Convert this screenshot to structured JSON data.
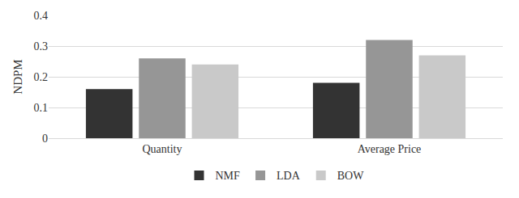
{
  "chart_data": {
    "type": "bar",
    "y_label": "NDPM",
    "categories": [
      "Quantity",
      "Average Price"
    ],
    "series": [
      {
        "name": "NMF",
        "color": "#333333",
        "values": [
          0.16,
          0.18
        ]
      },
      {
        "name": "LDA",
        "color": "#969696",
        "values": [
          0.26,
          0.32
        ]
      },
      {
        "name": "BOW",
        "color": "#c9c9c9",
        "values": [
          0.24,
          0.27
        ]
      }
    ],
    "ylim": [
      0,
      0.4
    ],
    "yticks": [
      0,
      0.1,
      0.2,
      0.3,
      0.4
    ],
    "grid": true,
    "legend": "bottom"
  }
}
